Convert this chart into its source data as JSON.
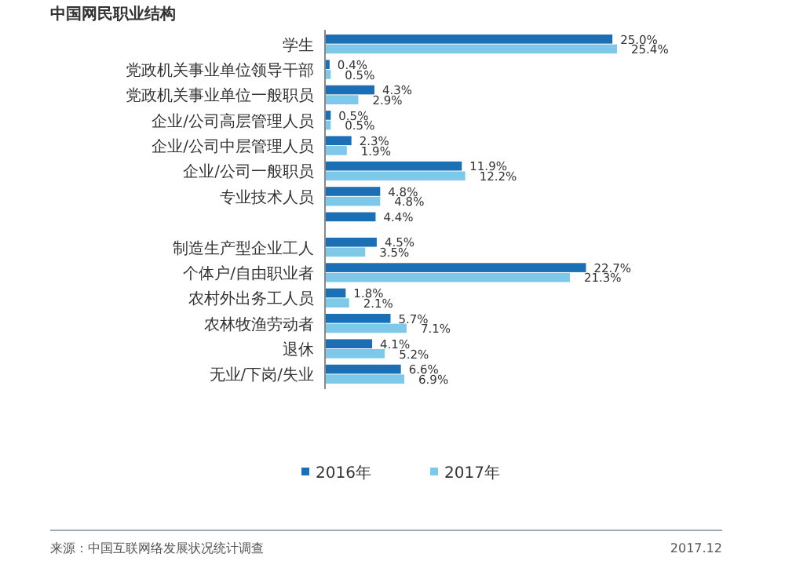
{
  "chart_data": {
    "type": "bar",
    "orientation": "horizontal",
    "title": "中国网民职业结构",
    "categories": [
      "学生",
      "党政机关事业单位领导干部",
      "党政机关事业单位一般职员",
      "企业/公司高层管理人员",
      "企业/公司中层管理人员",
      "企业/公司一般职员",
      "专业技术人员",
      null,
      "制造生产型企业工人",
      "个体户/自由职业者",
      "农村外出务工人员",
      "农林牧渔劳动者",
      "退休",
      "无业/下岗/失业"
    ],
    "series": [
      {
        "name": "2016年",
        "color": "#1a6fb5",
        "values": [
          25.0,
          0.4,
          4.3,
          0.5,
          2.3,
          11.9,
          4.8,
          4.4,
          4.5,
          22.7,
          1.8,
          5.7,
          4.1,
          6.6
        ],
        "value_labels": [
          "25.0%",
          "0.4%",
          "4.3%",
          "0.5%",
          "2.3%",
          "11.9%",
          "4.8%",
          "4.4%",
          "4.5%",
          "22.7%",
          "1.8%",
          "5.7%",
          "4.1%",
          "6.6%"
        ]
      },
      {
        "name": "2017年",
        "color": "#7ec8ea",
        "values": [
          25.4,
          0.5,
          2.9,
          0.5,
          1.9,
          12.2,
          4.8,
          null,
          3.5,
          21.3,
          2.1,
          7.1,
          5.2,
          6.9
        ],
        "value_labels": [
          "25.4%",
          "0.5%",
          "2.9%",
          "0.5%",
          "1.9%",
          "12.2%",
          "4.8%",
          null,
          "3.5%",
          "21.3%",
          "2.1%",
          "7.1%",
          "5.2%",
          "6.9%"
        ]
      }
    ],
    "legend": "bottom",
    "annotations": [
      "来源：中国互联网络发展状况统计调查",
      "2017.12"
    ]
  }
}
